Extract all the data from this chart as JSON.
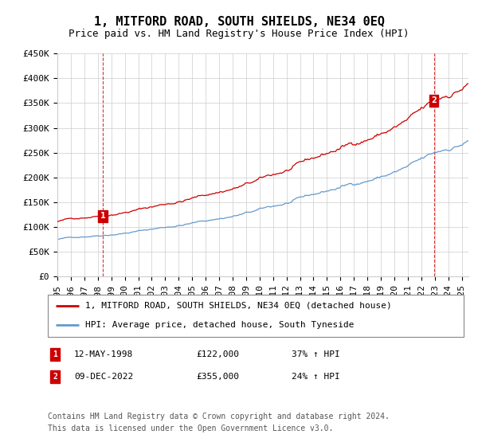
{
  "title": "1, MITFORD ROAD, SOUTH SHIELDS, NE34 0EQ",
  "subtitle": "Price paid vs. HM Land Registry's House Price Index (HPI)",
  "ylim": [
    0,
    450000
  ],
  "yticks": [
    0,
    50000,
    100000,
    150000,
    200000,
    250000,
    300000,
    350000,
    400000,
    450000
  ],
  "ytick_labels": [
    "£0",
    "£50K",
    "£100K",
    "£150K",
    "£200K",
    "£250K",
    "£300K",
    "£350K",
    "£400K",
    "£450K"
  ],
  "xlim_start": 1995.0,
  "xlim_end": 2025.5,
  "background_color": "#ffffff",
  "grid_color": "#cccccc",
  "red_line_color": "#cc0000",
  "blue_line_color": "#6699cc",
  "transaction1_date": "12-MAY-1998",
  "transaction1_x": 1998.36,
  "transaction1_y": 122000,
  "transaction1_label": "£122,000",
  "transaction1_hpi": "37% ↑ HPI",
  "transaction1_marker": "1",
  "transaction2_date": "09-DEC-2022",
  "transaction2_x": 2022.93,
  "transaction2_y": 355000,
  "transaction2_label": "£355,000",
  "transaction2_hpi": "24% ↑ HPI",
  "transaction2_marker": "2",
  "legend_line1": "1, MITFORD ROAD, SOUTH SHIELDS, NE34 0EQ (detached house)",
  "legend_line2": "HPI: Average price, detached house, South Tyneside",
  "footer_line1": "Contains HM Land Registry data © Crown copyright and database right 2024.",
  "footer_line2": "This data is licensed under the Open Government Licence v3.0.",
  "title_fontsize": 11,
  "subtitle_fontsize": 9,
  "tick_fontsize": 8,
  "legend_fontsize": 8,
  "footer_fontsize": 7
}
